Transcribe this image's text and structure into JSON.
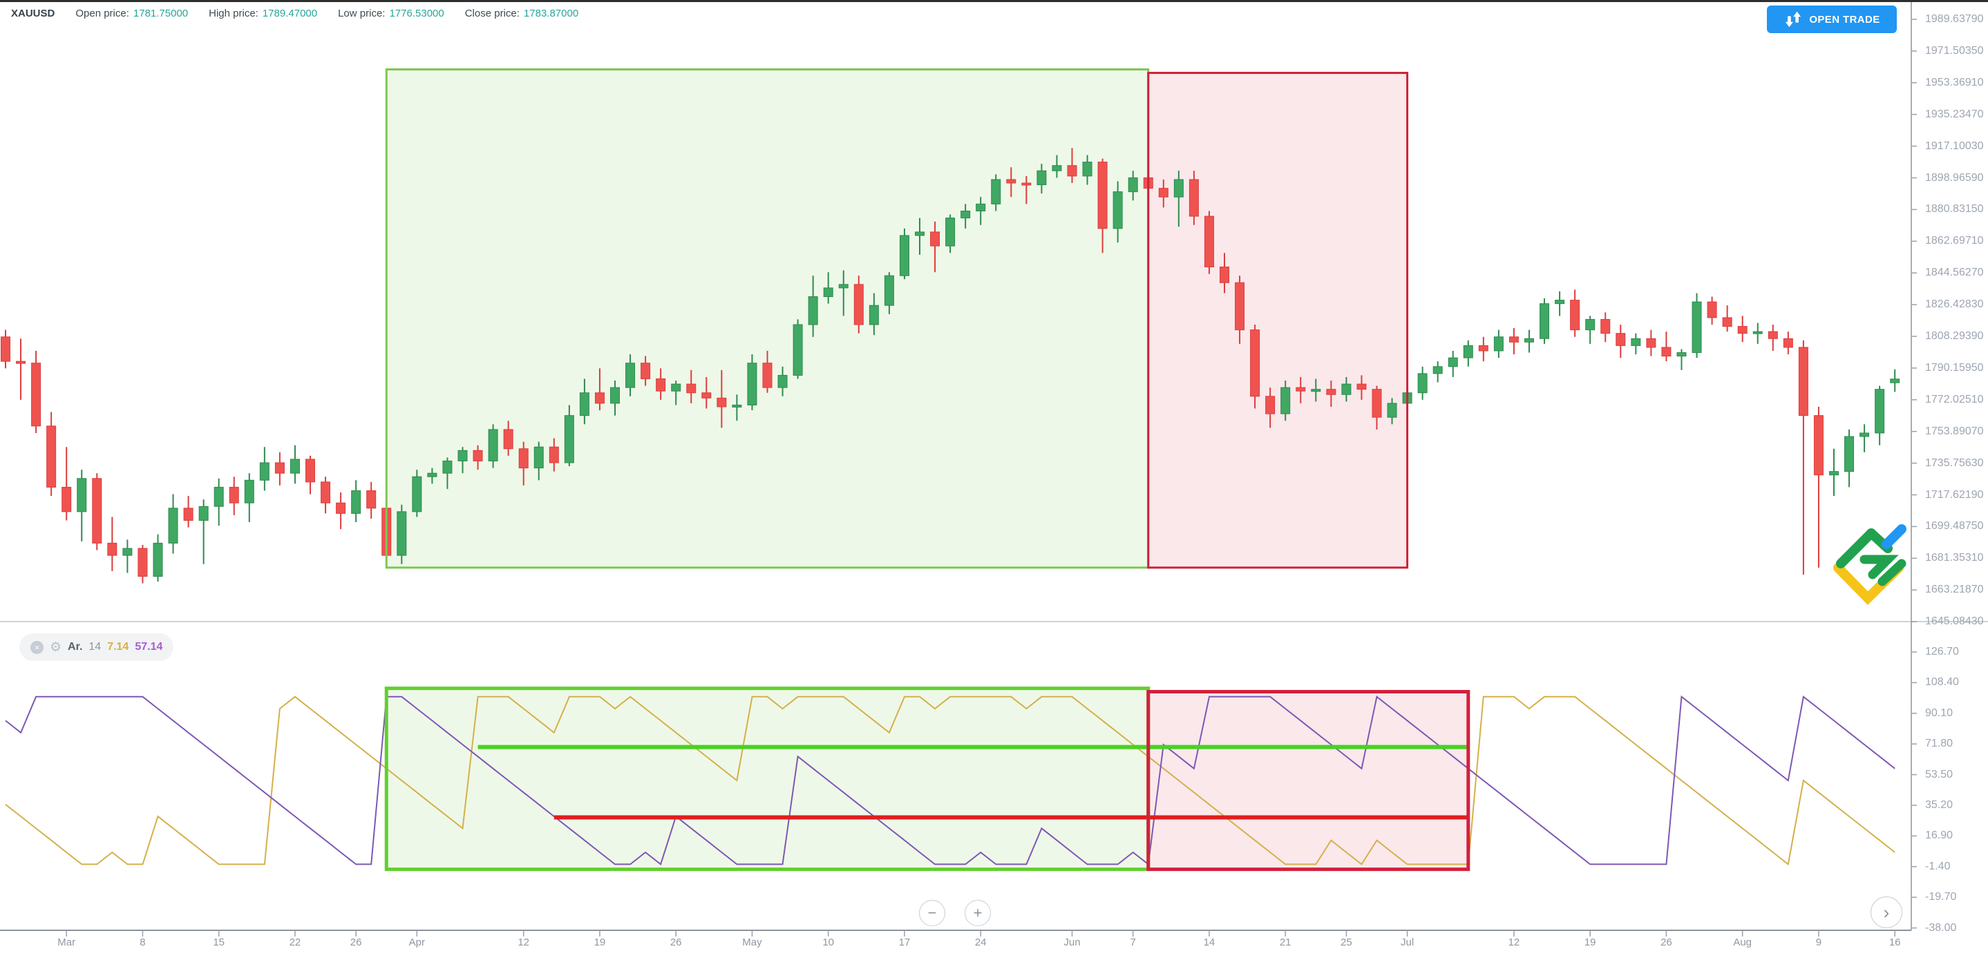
{
  "header": {
    "symbol": "XAUUSD",
    "open_label": "Open price:",
    "open_value": "1781.75000",
    "high_label": "High price:",
    "high_value": "1789.47000",
    "low_label": "Low price:",
    "low_value": "1776.53000",
    "close_label": "Close price:",
    "close_value": "1783.87000"
  },
  "open_trade_button": {
    "label": "OPEN TRADE"
  },
  "indicator_legend": {
    "close_icon": "×",
    "gear_icon": "⚙",
    "name": "Ar.",
    "period": "14",
    "up_value": "7.14",
    "down_value": "57.14"
  },
  "controls": {
    "zoom_out": "−",
    "zoom_in": "+",
    "scroll_right": "›"
  },
  "colors": {
    "candle_up": "#3fa863",
    "candle_up_stroke": "#2e8b4f",
    "candle_down": "#ef5350",
    "candle_down_stroke": "#dd3c3c",
    "aroon_up": "#d4b04a",
    "aroon_down": "#7e57b5",
    "legend_up": "#dcae3c",
    "legend_down": "#ab5bd6",
    "accent_blue": "#2196f3",
    "value_teal": "#26a69a",
    "axis_line": "#8b949c",
    "grid_text": "#9da5b0"
  },
  "price_axis": {
    "labels": [
      "1989.63790",
      "1971.50350",
      "1953.36910",
      "1935.23470",
      "1917.10030",
      "1898.96590",
      "1880.83150",
      "1862.69710",
      "1844.56270",
      "1826.42830",
      "1808.29390",
      "1790.15950",
      "1772.02510",
      "1753.89070",
      "1735.75630",
      "1717.62190",
      "1699.48750",
      "1681.35310",
      "1663.21870",
      "1645.08430"
    ]
  },
  "indicator_axis": {
    "labels": [
      "126.70",
      "108.40",
      "90.10",
      "71.80",
      "53.50",
      "35.20",
      "16.90",
      "-1.40",
      "-19.70",
      "-38.00"
    ]
  },
  "time_axis": {
    "ticks": [
      {
        "date": "Mar 1",
        "label": "Mar"
      },
      {
        "date": "Mar 8",
        "label": "8"
      },
      {
        "date": "Mar 15",
        "label": "15"
      },
      {
        "date": "Mar 22",
        "label": "22"
      },
      {
        "date": "Mar 26",
        "label": "26"
      },
      {
        "date": "Apr 1",
        "label": "Apr"
      },
      {
        "date": "Apr 12",
        "label": "12"
      },
      {
        "date": "Apr 19",
        "label": "19"
      },
      {
        "date": "Apr 26",
        "label": "26"
      },
      {
        "date": "May 3",
        "label": "May"
      },
      {
        "date": "May 10",
        "label": "10"
      },
      {
        "date": "May 17",
        "label": "17"
      },
      {
        "date": "May 24",
        "label": "24"
      },
      {
        "date": "Jun 1",
        "label": "Jun"
      },
      {
        "date": "Jun 7",
        "label": "7"
      },
      {
        "date": "Jun 14",
        "label": "14"
      },
      {
        "date": "Jun 21",
        "label": "21"
      },
      {
        "date": "Jun 25",
        "label": "25"
      },
      {
        "date": "Jul 1",
        "label": "Jul"
      },
      {
        "date": "Jul 12",
        "label": "12"
      },
      {
        "date": "Jul 19",
        "label": "19"
      },
      {
        "date": "Jul 26",
        "label": "26"
      },
      {
        "date": "Aug 2",
        "label": "Aug"
      },
      {
        "date": "Aug 9",
        "label": "9"
      },
      {
        "date": "Aug 16",
        "label": "16"
      }
    ]
  },
  "chart_data": {
    "type": "candlestick",
    "symbol": "XAUUSD",
    "timeframe": "daily",
    "indicator": {
      "name": "Aroon",
      "period": 14,
      "up_last": 7.14,
      "down_last": 57.14
    },
    "price_axis_top": 1989.6379,
    "price_axis_step": 18.1344,
    "indicator_axis_top": 126.7,
    "indicator_axis_step": 18.3,
    "candles": [
      [
        "Feb 3",
        1830,
        1845,
        1825,
        1833
      ],
      [
        "Feb 4",
        1833,
        1837,
        1785,
        1794
      ],
      [
        "Feb 5",
        1794,
        1815,
        1784,
        1810
      ],
      [
        "Feb 8",
        1810,
        1821,
        1805,
        1816
      ],
      [
        "Feb 9",
        1816,
        1840,
        1812,
        1838
      ],
      [
        "Feb 10",
        1838,
        1848,
        1827,
        1843
      ],
      [
        "Feb 11",
        1843,
        1847,
        1820,
        1826
      ],
      [
        "Feb 12",
        1826,
        1827,
        1810,
        1824
      ],
      [
        "Feb 15",
        1824,
        1827,
        1809,
        1819
      ],
      [
        "Feb 16",
        1819,
        1823,
        1789,
        1794
      ],
      [
        "Feb 17",
        1794,
        1798,
        1769,
        1776
      ],
      [
        "Feb 18",
        1776,
        1790,
        1760,
        1775
      ],
      [
        "Feb 19",
        1775,
        1786,
        1759,
        1784
      ],
      [
        "Feb 22",
        1784,
        1812,
        1780,
        1808
      ],
      [
        "Feb 23",
        1808,
        1812,
        1790,
        1794
      ],
      [
        "Feb 24",
        1794,
        1807,
        1772,
        1793
      ],
      [
        "Feb 25",
        1793,
        1800,
        1753,
        1757
      ],
      [
        "Feb 26",
        1757,
        1765,
        1717,
        1722
      ],
      [
        "Mar 1",
        1722,
        1745,
        1703,
        1708
      ],
      [
        "Mar 2",
        1708,
        1732,
        1691,
        1727
      ],
      [
        "Mar 3",
        1727,
        1730,
        1686,
        1690
      ],
      [
        "Mar 4",
        1690,
        1705,
        1674,
        1683
      ],
      [
        "Mar 5",
        1683,
        1692,
        1673,
        1687
      ],
      [
        "Mar 8",
        1687,
        1689,
        1667,
        1671
      ],
      [
        "Mar 9",
        1671,
        1695,
        1668,
        1690
      ],
      [
        "Mar 10",
        1690,
        1718,
        1684,
        1710
      ],
      [
        "Mar 11",
        1710,
        1717,
        1699,
        1703
      ],
      [
        "Mar 12",
        1703,
        1715,
        1678,
        1711
      ],
      [
        "Mar 15",
        1711,
        1727,
        1700,
        1722
      ],
      [
        "Mar 16",
        1722,
        1728,
        1706,
        1713
      ],
      [
        "Mar 17",
        1713,
        1730,
        1702,
        1726
      ],
      [
        "Mar 18",
        1726,
        1745,
        1720,
        1736
      ],
      [
        "Mar 19",
        1736,
        1742,
        1723,
        1730
      ],
      [
        "Mar 22",
        1730,
        1746,
        1724,
        1738
      ],
      [
        "Mar 23",
        1738,
        1740,
        1718,
        1725
      ],
      [
        "Mar 24",
        1725,
        1728,
        1707,
        1713
      ],
      [
        "Mar 25",
        1713,
        1719,
        1698,
        1707
      ],
      [
        "Mar 26",
        1707,
        1726,
        1702,
        1720
      ],
      [
        "Mar 29",
        1720,
        1725,
        1704,
        1710
      ],
      [
        "Mar 30",
        1710,
        1713,
        1678,
        1683
      ],
      [
        "Mar 31",
        1683,
        1712,
        1678,
        1708
      ],
      [
        "Apr 1",
        1708,
        1732,
        1705,
        1728
      ],
      [
        "Apr 2",
        1728,
        1733,
        1724,
        1730
      ],
      [
        "Apr 5",
        1730,
        1739,
        1721,
        1737
      ],
      [
        "Apr 6",
        1737,
        1745,
        1730,
        1743
      ],
      [
        "Apr 7",
        1743,
        1746,
        1732,
        1737
      ],
      [
        "Apr 8",
        1737,
        1758,
        1733,
        1755
      ],
      [
        "Apr 9",
        1755,
        1760,
        1740,
        1744
      ],
      [
        "Apr 12",
        1744,
        1748,
        1723,
        1733
      ],
      [
        "Apr 13",
        1733,
        1748,
        1726,
        1745
      ],
      [
        "Apr 14",
        1745,
        1750,
        1731,
        1736
      ],
      [
        "Apr 15",
        1736,
        1769,
        1734,
        1763
      ],
      [
        "Apr 16",
        1763,
        1784,
        1758,
        1776
      ],
      [
        "Apr 19",
        1776,
        1790,
        1766,
        1770
      ],
      [
        "Apr 20",
        1770,
        1783,
        1763,
        1779
      ],
      [
        "Apr 21",
        1779,
        1798,
        1774,
        1793
      ],
      [
        "Apr 22",
        1793,
        1797,
        1780,
        1784
      ],
      [
        "Apr 23",
        1784,
        1790,
        1772,
        1777
      ],
      [
        "Apr 26",
        1777,
        1783,
        1769,
        1781
      ],
      [
        "Apr 27",
        1781,
        1789,
        1770,
        1776
      ],
      [
        "Apr 28",
        1776,
        1785,
        1767,
        1773
      ],
      [
        "Apr 29",
        1773,
        1789,
        1756,
        1768
      ],
      [
        "Apr 30",
        1768,
        1775,
        1760,
        1769
      ],
      [
        "May 3",
        1769,
        1798,
        1766,
        1793
      ],
      [
        "May 4",
        1793,
        1800,
        1776,
        1779
      ],
      [
        "May 5",
        1779,
        1791,
        1774,
        1786
      ],
      [
        "May 6",
        1786,
        1818,
        1784,
        1815
      ],
      [
        "May 7",
        1815,
        1843,
        1808,
        1831
      ],
      [
        "May 10",
        1831,
        1845,
        1827,
        1836
      ],
      [
        "May 11",
        1836,
        1846,
        1820,
        1838
      ],
      [
        "May 12",
        1838,
        1843,
        1810,
        1815
      ],
      [
        "May 13",
        1815,
        1833,
        1809,
        1826
      ],
      [
        "May 14",
        1826,
        1845,
        1821,
        1843
      ],
      [
        "May 17",
        1843,
        1870,
        1841,
        1866
      ],
      [
        "May 18",
        1866,
        1876,
        1855,
        1868
      ],
      [
        "May 19",
        1868,
        1874,
        1845,
        1860
      ],
      [
        "May 20",
        1860,
        1878,
        1856,
        1876
      ],
      [
        "May 21",
        1876,
        1884,
        1870,
        1880
      ],
      [
        "May 24",
        1880,
        1888,
        1872,
        1884
      ],
      [
        "May 25",
        1884,
        1901,
        1880,
        1898
      ],
      [
        "May 26",
        1898,
        1905,
        1888,
        1896
      ],
      [
        "May 27",
        1896,
        1900,
        1884,
        1895
      ],
      [
        "May 28",
        1895,
        1907,
        1890,
        1903
      ],
      [
        "May 31",
        1903,
        1912,
        1899,
        1906
      ],
      [
        "Jun 1",
        1906,
        1916,
        1896,
        1900
      ],
      [
        "Jun 2",
        1900,
        1912,
        1895,
        1908
      ],
      [
        "Jun 3",
        1908,
        1910,
        1856,
        1870
      ],
      [
        "Jun 4",
        1870,
        1897,
        1862,
        1891
      ],
      [
        "Jun 7",
        1891,
        1903,
        1886,
        1899
      ],
      [
        "Jun 8",
        1899,
        1905,
        1888,
        1893
      ],
      [
        "Jun 9",
        1893,
        1898,
        1882,
        1888
      ],
      [
        "Jun 10",
        1888,
        1903,
        1871,
        1898
      ],
      [
        "Jun 11",
        1898,
        1903,
        1872,
        1877
      ],
      [
        "Jun 14",
        1877,
        1880,
        1844,
        1848
      ],
      [
        "Jun 15",
        1848,
        1856,
        1833,
        1839
      ],
      [
        "Jun 16",
        1839,
        1843,
        1804,
        1812
      ],
      [
        "Jun 17",
        1812,
        1815,
        1767,
        1774
      ],
      [
        "Jun 18",
        1774,
        1779,
        1756,
        1764
      ],
      [
        "Jun 21",
        1764,
        1783,
        1760,
        1779
      ],
      [
        "Jun 22",
        1779,
        1785,
        1770,
        1777
      ],
      [
        "Jun 23",
        1777,
        1784,
        1771,
        1778
      ],
      [
        "Jun 24",
        1778,
        1783,
        1768,
        1775
      ],
      [
        "Jun 25",
        1775,
        1785,
        1771,
        1781
      ],
      [
        "Jun 28",
        1781,
        1786,
        1772,
        1778
      ],
      [
        "Jun 29",
        1778,
        1780,
        1755,
        1762
      ],
      [
        "Jun 30",
        1762,
        1773,
        1758,
        1770
      ],
      [
        "Jul 1",
        1770,
        1778,
        1764,
        1776
      ],
      [
        "Jul 2",
        1776,
        1791,
        1772,
        1787
      ],
      [
        "Jul 5",
        1787,
        1794,
        1782,
        1791
      ],
      [
        "Jul 6",
        1791,
        1800,
        1785,
        1796
      ],
      [
        "Jul 7",
        1796,
        1806,
        1791,
        1803
      ],
      [
        "Jul 8",
        1803,
        1808,
        1794,
        1800
      ],
      [
        "Jul 9",
        1800,
        1812,
        1796,
        1808
      ],
      [
        "Jul 12",
        1808,
        1813,
        1798,
        1805
      ],
      [
        "Jul 13",
        1805,
        1812,
        1799,
        1807
      ],
      [
        "Jul 14",
        1807,
        1830,
        1804,
        1827
      ],
      [
        "Jul 15",
        1827,
        1834,
        1820,
        1829
      ],
      [
        "Jul 16",
        1829,
        1835,
        1808,
        1812
      ],
      [
        "Jul 19",
        1812,
        1820,
        1804,
        1818
      ],
      [
        "Jul 20",
        1818,
        1822,
        1805,
        1810
      ],
      [
        "Jul 21",
        1810,
        1815,
        1796,
        1803
      ],
      [
        "Jul 22",
        1803,
        1810,
        1798,
        1807
      ],
      [
        "Jul 23",
        1807,
        1812,
        1797,
        1802
      ],
      [
        "Jul 26",
        1802,
        1811,
        1794,
        1797
      ],
      [
        "Jul 27",
        1797,
        1801,
        1789,
        1799
      ],
      [
        "Jul 28",
        1799,
        1833,
        1796,
        1828
      ],
      [
        "Jul 29",
        1828,
        1831,
        1815,
        1819
      ],
      [
        "Jul 30",
        1819,
        1826,
        1811,
        1814
      ],
      [
        "Aug 2",
        1814,
        1820,
        1805,
        1810
      ],
      [
        "Aug 3",
        1810,
        1816,
        1804,
        1811
      ],
      [
        "Aug 4",
        1811,
        1815,
        1800,
        1807
      ],
      [
        "Aug 5",
        1807,
        1811,
        1798,
        1802
      ],
      [
        "Aug 6",
        1802,
        1806,
        1672,
        1763
      ],
      [
        "Aug 9",
        1763,
        1768,
        1676,
        1729
      ],
      [
        "Aug 10",
        1729,
        1744,
        1717,
        1731
      ],
      [
        "Aug 11",
        1731,
        1755,
        1722,
        1751
      ],
      [
        "Aug 12",
        1751,
        1758,
        1742,
        1753
      ],
      [
        "Aug 13",
        1753,
        1780,
        1746,
        1778
      ],
      [
        "Aug 16",
        1781.75,
        1789.47,
        1776.53,
        1783.87
      ]
    ],
    "regions": {
      "main": [
        {
          "kind": "bullish",
          "from": "Mar 30",
          "to": "Jun 8",
          "price_top": 1961,
          "price_bottom": 1676,
          "fill": "rgba(124,199,81,0.13)",
          "border": "#7cc751"
        },
        {
          "kind": "bearish",
          "from": "Jun 8",
          "to": "Jul 1",
          "price_top": 1959,
          "price_bottom": 1676,
          "fill": "rgba(210,33,60,0.10)",
          "border": "#cc2136"
        }
      ],
      "indicator": [
        {
          "kind": "bullish",
          "from": "Mar 30",
          "to": "Jun 8",
          "value_top": 105,
          "value_bottom": -3,
          "fill": "rgba(124,199,81,0.13)",
          "border": "#62cf2e"
        },
        {
          "kind": "bearish",
          "from": "Jun 8",
          "to": "Jul 7",
          "value_top": 103,
          "value_bottom": -3,
          "fill": "rgba(210,33,60,0.10)",
          "border": "#d2203c"
        }
      ]
    },
    "hlines": [
      {
        "name": "aroon-green-level",
        "value": 70,
        "from": "Apr 7",
        "to": "Jul 7",
        "color": "#47d220"
      },
      {
        "name": "aroon-red-level",
        "value": 28,
        "from": "Apr 14",
        "to": "Jul 7",
        "color": "#e21d1d"
      }
    ]
  }
}
